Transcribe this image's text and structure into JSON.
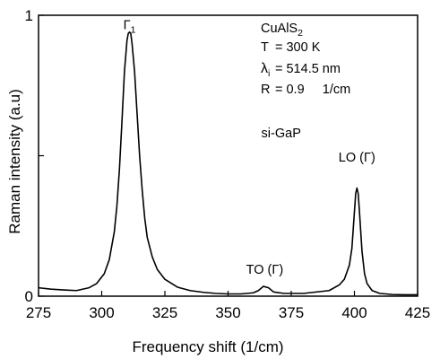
{
  "chart_data": {
    "type": "line",
    "title": "",
    "xlabel": "Frequency shift (1/cm)",
    "ylabel": "Raman intensity (a.u)",
    "xlim": [
      275,
      425
    ],
    "ylim": [
      0,
      1
    ],
    "x_ticks": [
      275,
      300,
      325,
      350,
      375,
      400,
      425
    ],
    "y_tick_labels": [
      {
        "value": 0,
        "label": "0"
      },
      {
        "value": 1,
        "label": "1"
      }
    ],
    "y_minor_ticks": [
      0.5
    ],
    "grid": false,
    "legend": "none",
    "series": [
      {
        "x": [
          275,
          280,
          285,
          290,
          295,
          298,
          301,
          303,
          305,
          306,
          307,
          308,
          309,
          310,
          310.5,
          311,
          311.5,
          312,
          313,
          314,
          315,
          316,
          317,
          318,
          320,
          322,
          325,
          330,
          335,
          340,
          345,
          350,
          355,
          360,
          362,
          364,
          366,
          368,
          372,
          380,
          390,
          394,
          396,
          398,
          399,
          400,
          400.5,
          401,
          401.5,
          402,
          403,
          404,
          405,
          407,
          410,
          415,
          420,
          425
        ],
        "y": [
          0.03,
          0.025,
          0.022,
          0.02,
          0.03,
          0.045,
          0.08,
          0.13,
          0.23,
          0.32,
          0.45,
          0.62,
          0.8,
          0.91,
          0.935,
          0.94,
          0.935,
          0.9,
          0.8,
          0.65,
          0.5,
          0.38,
          0.28,
          0.21,
          0.14,
          0.095,
          0.06,
          0.032,
          0.02,
          0.014,
          0.01,
          0.008,
          0.008,
          0.012,
          0.02,
          0.035,
          0.03,
          0.015,
          0.01,
          0.01,
          0.02,
          0.04,
          0.06,
          0.11,
          0.17,
          0.3,
          0.365,
          0.385,
          0.365,
          0.3,
          0.16,
          0.08,
          0.045,
          0.02,
          0.01,
          0.006,
          0.005,
          0.005
        ]
      }
    ],
    "annotations": [
      {
        "text": "Γ",
        "subscript": "1",
        "x": 311,
        "y": 0.95
      },
      {
        "text": "si-GaP",
        "x": 371,
        "y": 0.565
      },
      {
        "text": "LO (Γ)",
        "x": 401,
        "y": 0.48
      },
      {
        "text": "TO (Γ)",
        "x": 364.5,
        "y": 0.08
      }
    ],
    "info_box": {
      "material": "CuAlS",
      "material_subscript": "2",
      "lines": [
        {
          "label": "T",
          "label_subscript": "",
          "value": "= 300 K"
        },
        {
          "label": "λ",
          "label_subscript": "i",
          "value": "= 514.5 nm"
        },
        {
          "label": "R",
          "label_subscript": "",
          "value": "= 0.9     1/cm"
        }
      ]
    }
  }
}
